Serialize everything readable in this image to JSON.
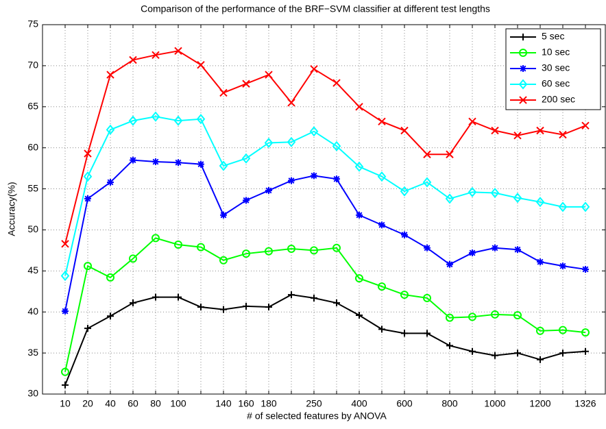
{
  "chart_data": {
    "type": "line",
    "title": "Comparison of the performance of the BRF−SVM classifier at different test lengths",
    "x_label": "# of selected features by ANOVA",
    "y_label": "Accuracy(%)",
    "categories": [
      "10",
      "20",
      "40",
      "60",
      "80",
      "100",
      null,
      "140",
      "160",
      "180",
      null,
      "250",
      null,
      "400",
      null,
      "600",
      null,
      "800",
      null,
      "1000",
      null,
      "1200",
      null,
      "1326"
    ],
    "ylim": [
      30,
      75
    ],
    "yticks": [
      30,
      35,
      40,
      45,
      50,
      55,
      60,
      65,
      70,
      75
    ],
    "grid": true,
    "legend": "upper right",
    "series": [
      {
        "name": "5 sec",
        "color": "#000000",
        "marker": "plus",
        "values": [
          31.1,
          38.0,
          39.5,
          41.1,
          41.8,
          41.8,
          40.6,
          40.3,
          40.7,
          40.6,
          42.1,
          41.7,
          41.1,
          39.6,
          37.9,
          37.4,
          37.4,
          35.9,
          35.2,
          34.7,
          35.0,
          34.2,
          35.0,
          35.2
        ]
      },
      {
        "name": "10 sec",
        "color": "#00ff00",
        "marker": "circle",
        "values": [
          32.7,
          45.6,
          44.2,
          46.5,
          49.0,
          48.2,
          47.9,
          46.3,
          47.1,
          47.4,
          47.7,
          47.5,
          47.8,
          44.1,
          43.1,
          42.1,
          41.7,
          39.3,
          39.4,
          39.7,
          39.6,
          37.7,
          37.8,
          37.5
        ]
      },
      {
        "name": "30 sec",
        "color": "#0000ff",
        "marker": "asterisk",
        "values": [
          40.1,
          53.8,
          55.8,
          58.5,
          58.3,
          58.2,
          58.0,
          51.8,
          53.6,
          54.8,
          56.0,
          56.6,
          56.2,
          51.8,
          50.6,
          49.4,
          47.8,
          45.8,
          47.2,
          47.8,
          47.6,
          46.1,
          45.6,
          45.2
        ]
      },
      {
        "name": "60 sec",
        "color": "#00ffff",
        "marker": "diamond",
        "values": [
          44.4,
          56.5,
          62.2,
          63.3,
          63.8,
          63.3,
          63.5,
          57.8,
          58.7,
          60.6,
          60.7,
          62.0,
          60.2,
          57.7,
          56.5,
          54.7,
          55.8,
          53.8,
          54.6,
          54.5,
          53.9,
          53.4,
          52.8,
          52.8
        ]
      },
      {
        "name": "200 sec",
        "color": "#ff0000",
        "marker": "x",
        "values": [
          48.3,
          59.3,
          68.9,
          70.7,
          71.3,
          71.8,
          70.1,
          66.7,
          67.8,
          68.9,
          65.5,
          69.6,
          67.9,
          65.0,
          63.2,
          62.1,
          59.2,
          59.2,
          63.2,
          62.1,
          61.5,
          62.1,
          61.6,
          62.7
        ]
      }
    ]
  }
}
